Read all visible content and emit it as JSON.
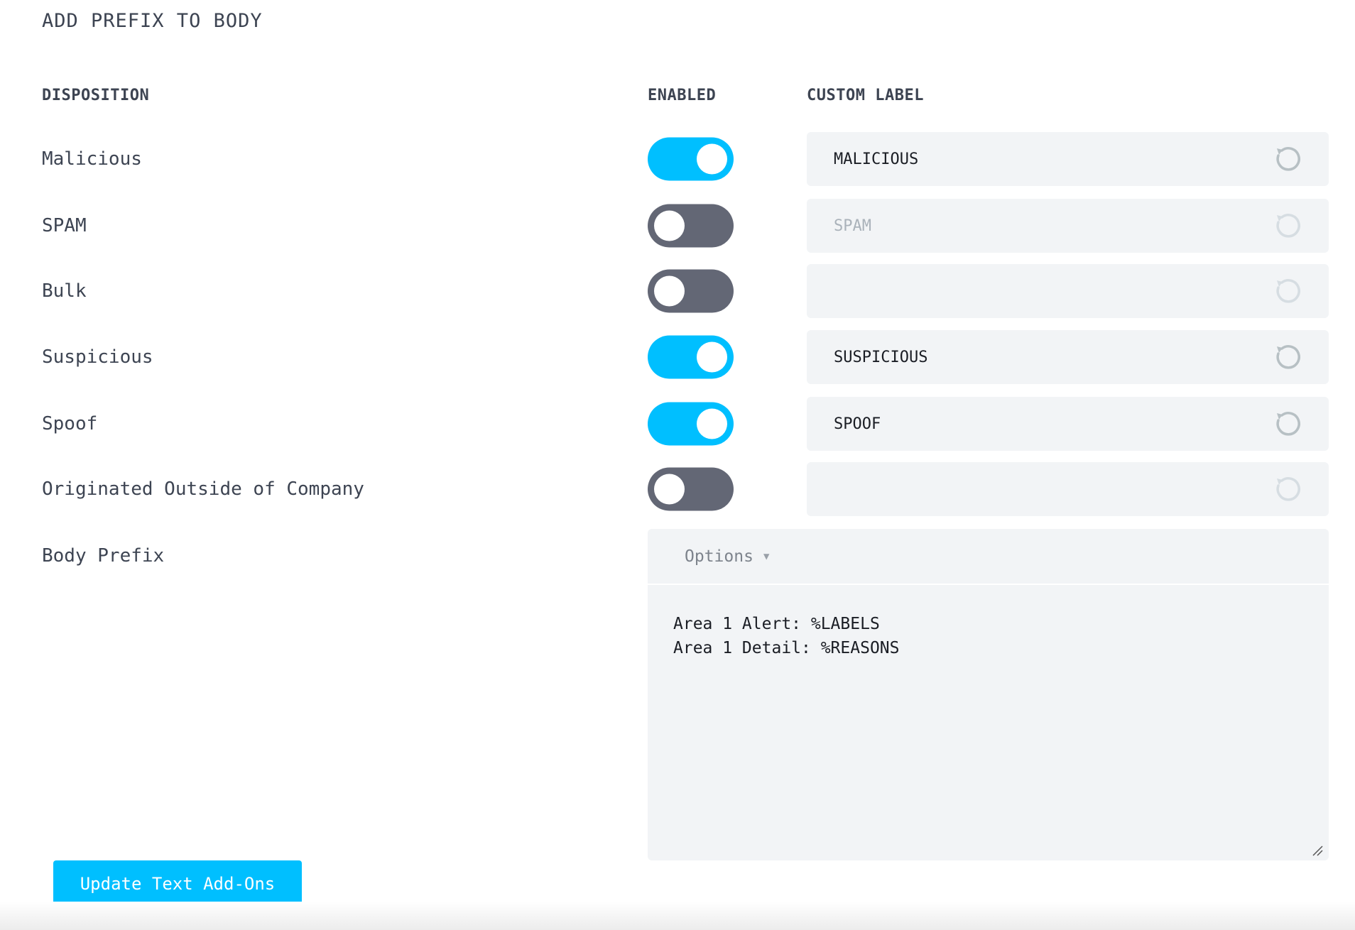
{
  "title": "ADD PREFIX TO BODY",
  "headers": {
    "disposition": "DISPOSITION",
    "enabled": "ENABLED",
    "custom_label": "CUSTOM LABEL"
  },
  "rows": [
    {
      "label": "Malicious",
      "enabled": true,
      "custom_label": "MALICIOUS",
      "placeholder": ""
    },
    {
      "label": "SPAM",
      "enabled": false,
      "custom_label": "",
      "placeholder": "SPAM"
    },
    {
      "label": "Bulk",
      "enabled": false,
      "custom_label": "",
      "placeholder": ""
    },
    {
      "label": "Suspicious",
      "enabled": true,
      "custom_label": "SUSPICIOUS",
      "placeholder": ""
    },
    {
      "label": "Spoof",
      "enabled": true,
      "custom_label": "SPOOF",
      "placeholder": ""
    },
    {
      "label": "Originated Outside of Company",
      "enabled": false,
      "custom_label": "",
      "placeholder": ""
    }
  ],
  "body_prefix": {
    "label": "Body Prefix",
    "options_label": "Options",
    "text": "Area 1 Alert: %LABELS\nArea 1 Detail: %REASONS"
  },
  "update_button": "Update Text Add-Ons",
  "icons": {
    "reset": "reset-icon",
    "caret": "caret-down-icon",
    "resize": "resize-handle-icon"
  },
  "colors": {
    "accent": "#00bfff",
    "toggle_off": "#636775",
    "field_bg": "#f2f4f6"
  }
}
